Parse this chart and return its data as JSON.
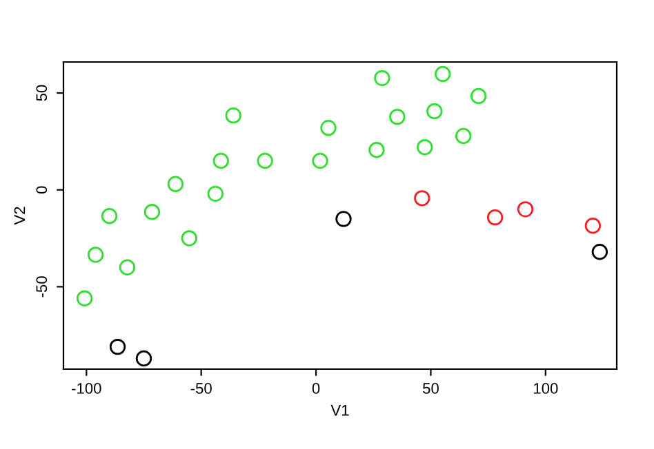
{
  "chart_data": {
    "type": "scatter",
    "xlabel": "V1",
    "ylabel": "V2",
    "xlim": [
      -110,
      131
    ],
    "ylim": [
      -92.5,
      66
    ],
    "xticks": [
      -100,
      -50,
      0,
      50,
      100
    ],
    "yticks": [
      -50,
      0,
      50
    ],
    "grid": false,
    "legend": false,
    "marker": "circle",
    "series": [
      {
        "color": "#33dd33",
        "x": [
          -100.8,
          -96,
          -90,
          -82.2,
          -71.4,
          -61.2,
          -55.2,
          -43.8,
          -41.4,
          -36,
          -22.2,
          1.8,
          5.4,
          26.4,
          28.8,
          35.4,
          47.4,
          51.6,
          55.2,
          64.2,
          70.8
        ],
        "values": [
          -56,
          -33.5,
          -13.5,
          -40,
          -11.4,
          3,
          -25,
          -2,
          15,
          38.4,
          15,
          15,
          32,
          20.6,
          57.7,
          37.7,
          22,
          40.6,
          59.8,
          27.8,
          48.4
        ]
      },
      {
        "color": "#000000",
        "x": [
          -86.4,
          -75,
          12,
          123.6
        ],
        "values": [
          -81,
          -87,
          -15,
          -32
        ]
      },
      {
        "color": "#ee2222",
        "x": [
          46.2,
          78,
          91.2,
          120.6
        ],
        "values": [
          -4.3,
          -14.2,
          -10,
          -18.5
        ]
      }
    ]
  }
}
